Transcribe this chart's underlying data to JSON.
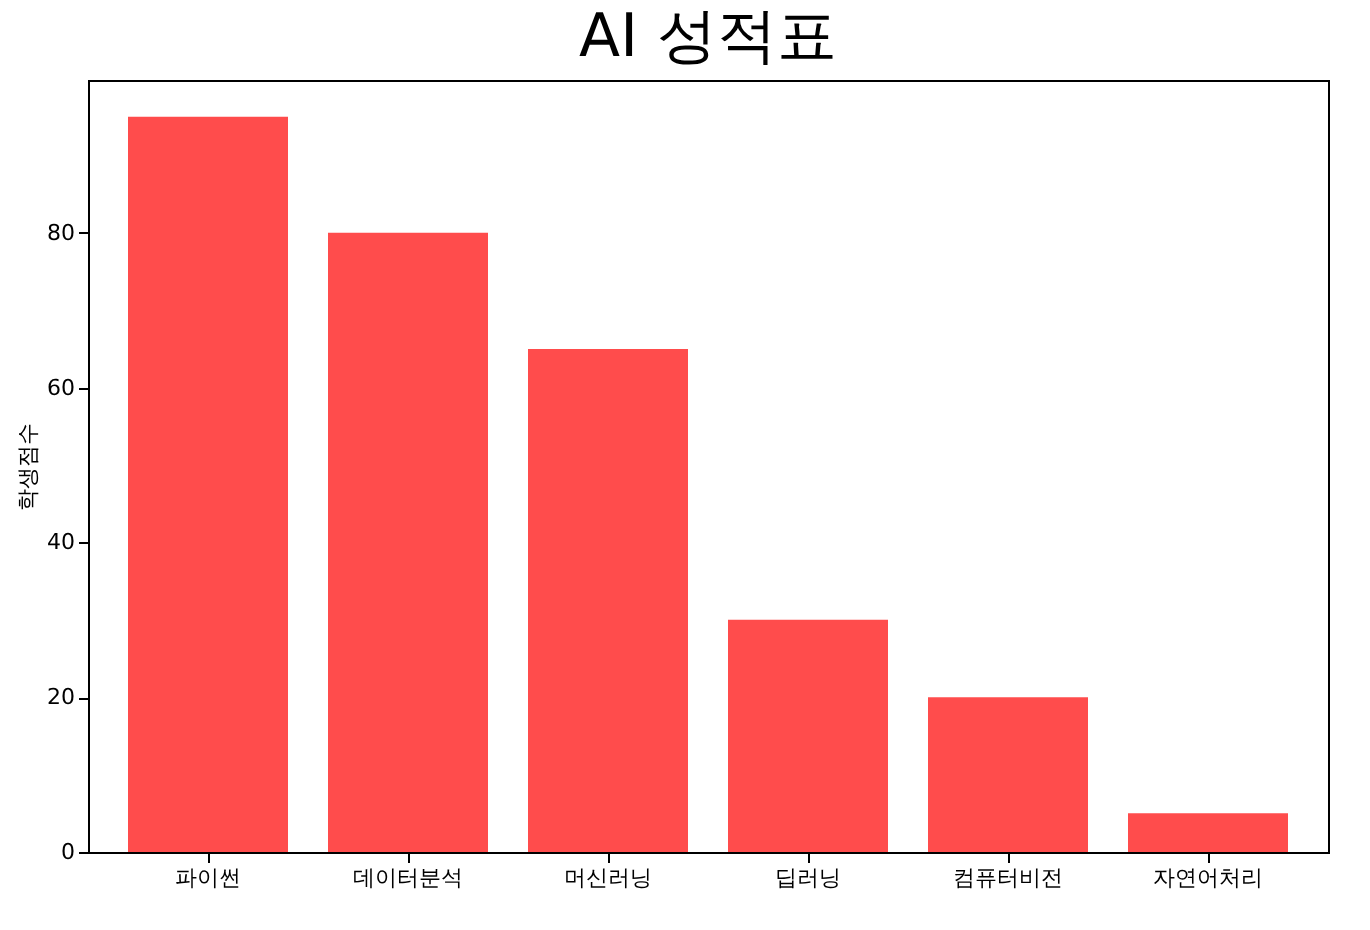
{
  "chart_data": {
    "type": "bar",
    "title": "AI 성적표",
    "ylabel": "학생점수",
    "categories": [
      "파이썬",
      "데이터분석",
      "머신러닝",
      "딥러닝",
      "컴퓨터비전",
      "자연어처리"
    ],
    "values": [
      95,
      80,
      65,
      30,
      20,
      5
    ],
    "color": "#ff4c4c",
    "ylim": [
      0,
      99.75
    ],
    "yticks": [
      0,
      20,
      40,
      60,
      80
    ],
    "grid": false
  }
}
